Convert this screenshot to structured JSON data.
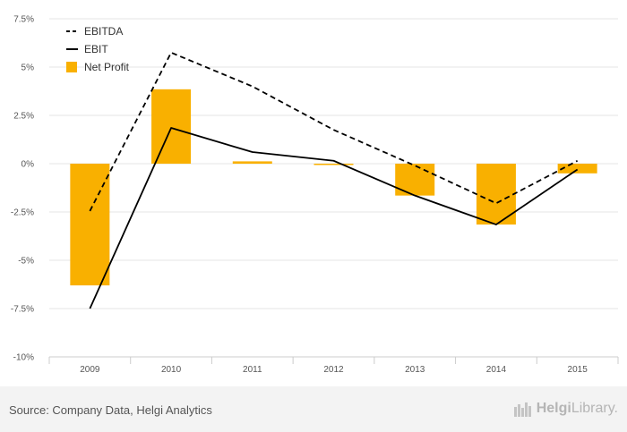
{
  "chart_data": {
    "type": "bar",
    "categories": [
      "2009",
      "2010",
      "2011",
      "2012",
      "2013",
      "2014",
      "2015"
    ],
    "y_ticks": [
      "7.5%",
      "5%",
      "2.5%",
      "0%",
      "-2.5%",
      "-5%",
      "-7.5%",
      "-10%"
    ],
    "y_tick_values": [
      7.5,
      5,
      2.5,
      0,
      -2.5,
      -5,
      -7.5,
      -10
    ],
    "ylim": [
      -10,
      7.5
    ],
    "grid": "horizontal",
    "legend_placement": "top-left",
    "series": [
      {
        "name": "EBITDA",
        "type": "line",
        "style": "dashed",
        "color": "#000000",
        "values": [
          -2.45,
          5.75,
          4.0,
          1.75,
          -0.1,
          -2.05,
          0.15
        ]
      },
      {
        "name": "EBIT",
        "type": "line",
        "style": "solid",
        "color": "#000000",
        "values": [
          -7.5,
          1.85,
          0.6,
          0.15,
          -1.65,
          -3.15,
          -0.3
        ]
      },
      {
        "name": "Net Profit",
        "type": "bar",
        "color": "#f9b000",
        "values": [
          -6.3,
          3.85,
          0.12,
          -0.05,
          -1.65,
          -3.15,
          -0.5
        ]
      }
    ]
  },
  "footer": {
    "source": "Source: Company Data, Helgi Analytics",
    "brand_bold": "Helgi",
    "brand_light": "Library."
  }
}
